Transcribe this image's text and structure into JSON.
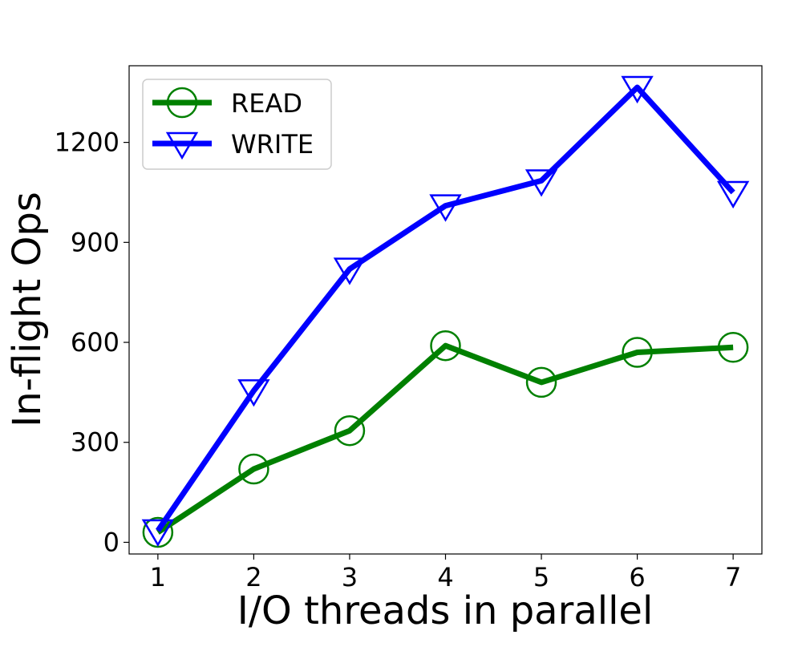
{
  "chart_data": {
    "type": "line",
    "title": "",
    "xlabel": "I/O threads in parallel",
    "ylabel": "In-flight Ops",
    "x": [
      1,
      2,
      3,
      4,
      5,
      6,
      7
    ],
    "xticks": [
      "1",
      "2",
      "3",
      "4",
      "5",
      "6",
      "7"
    ],
    "yticks": [
      "0",
      "300",
      "600",
      "900",
      "1200"
    ],
    "ytick_values": [
      0,
      300,
      600,
      900,
      1200
    ],
    "xlim": [
      0.7,
      7.3
    ],
    "ylim": [
      -35,
      1430
    ],
    "grid": false,
    "legend_position": "upper-left",
    "series": [
      {
        "name": "READ",
        "color": "#008000",
        "marker": "circle",
        "values": [
          30,
          220,
          335,
          590,
          480,
          570,
          585
        ]
      },
      {
        "name": "WRITE",
        "color": "#0000ff",
        "marker": "triangle-down",
        "values": [
          35,
          455,
          820,
          1010,
          1085,
          1365,
          1050
        ]
      }
    ]
  }
}
